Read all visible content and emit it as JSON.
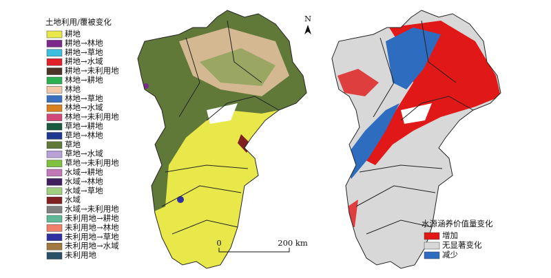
{
  "legend": {
    "title": "土地利用/覆被变化",
    "items": [
      {
        "label": "耕地",
        "color": "#e8e84a"
      },
      {
        "label": "耕地→林地",
        "color": "#7b2a8c"
      },
      {
        "label": "耕地→草地",
        "color": "#3cc0e0"
      },
      {
        "label": "耕地→水域",
        "color": "#e0202a"
      },
      {
        "label": "耕地→未利用地",
        "color": "#4a3528"
      },
      {
        "label": "林地→耕地",
        "color": "#2ab050"
      },
      {
        "label": "林地",
        "color": "#f0c8a8"
      },
      {
        "label": "林地→草地",
        "color": "#3a70c0"
      },
      {
        "label": "林地→水域",
        "color": "#d88020"
      },
      {
        "label": "林地→未利用地",
        "color": "#d04878"
      },
      {
        "label": "草地→耕地",
        "color": "#1a5a40"
      },
      {
        "label": "草地→林地",
        "color": "#203890"
      },
      {
        "label": "草地",
        "color": "#607838"
      },
      {
        "label": "草地→水域",
        "color": "#b8a0d8"
      },
      {
        "label": "草地→未利用地",
        "color": "#80c040"
      },
      {
        "label": "水域→耕地",
        "color": "#c078b8"
      },
      {
        "label": "水域→林地",
        "color": "#402060"
      },
      {
        "label": "水域→草地",
        "color": "#a0d080"
      },
      {
        "label": "水域",
        "color": "#802020"
      },
      {
        "label": "水域→未利用地",
        "color": "#808080"
      },
      {
        "label": "未利用地→耕地",
        "color": "#60b898"
      },
      {
        "label": "未利用地→林地",
        "color": "#f08068"
      },
      {
        "label": "未利用地→草地",
        "color": "#3030a0"
      },
      {
        "label": "未利用地→水域",
        "color": "#a07840"
      },
      {
        "label": "未利用地",
        "color": "#285068"
      }
    ]
  },
  "value_legend": {
    "title": "水源涵养价值量变化",
    "items": [
      {
        "label": "增加",
        "color": "#e01818"
      },
      {
        "label": "无显著变化",
        "color": "#d8d8d8"
      },
      {
        "label": "减少",
        "color": "#2e6cc0"
      }
    ]
  },
  "north": "N",
  "scale_bar": {
    "start": "0",
    "end": "200 km"
  }
}
